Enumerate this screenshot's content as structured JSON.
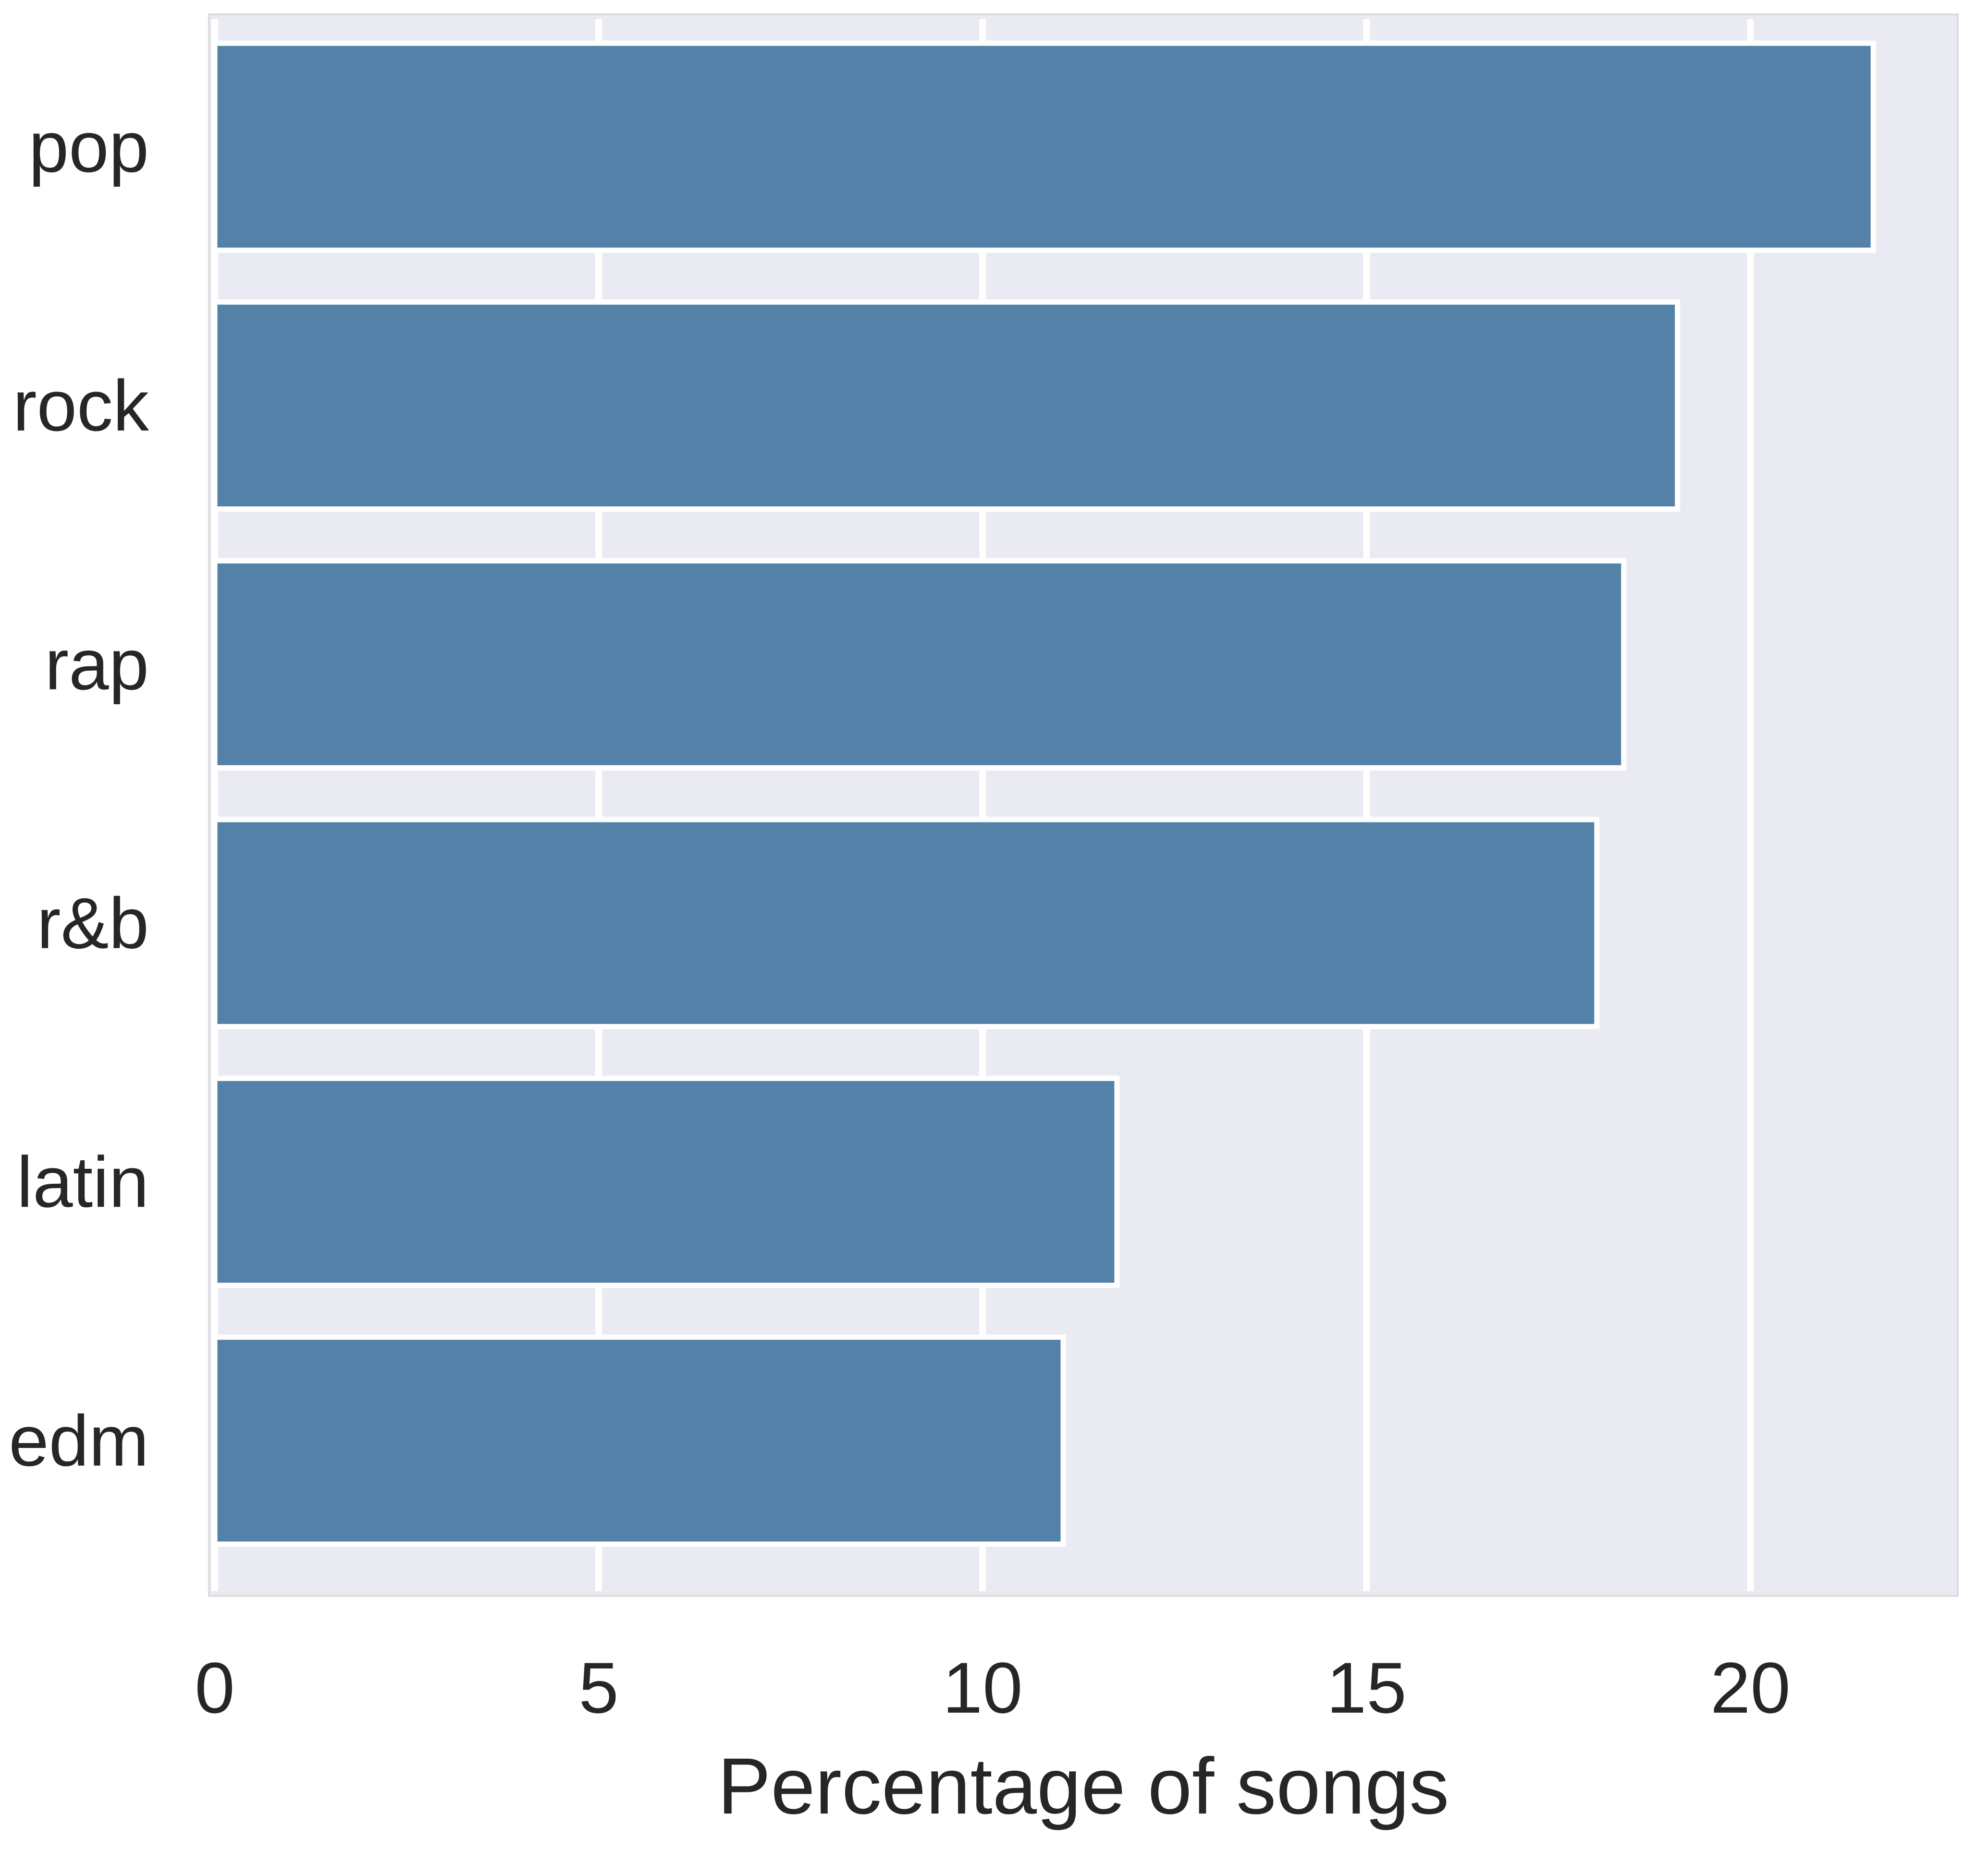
{
  "chart_data": {
    "type": "bar",
    "orientation": "horizontal",
    "categories": [
      "pop",
      "rock",
      "rap",
      "r&b",
      "latin",
      "edm"
    ],
    "values": [
      21.6,
      19.05,
      18.35,
      18.0,
      11.75,
      11.05
    ],
    "xlabel": "Percentage of songs",
    "ylabel": "",
    "title": "",
    "xlim": [
      0,
      22.7
    ],
    "xticks": [
      0,
      5,
      10,
      15,
      20
    ],
    "xtick_labels": [
      "0",
      "5",
      "10",
      "15",
      "20"
    ],
    "grid": true,
    "legend": "none",
    "colors": {
      "bar": "#5381a7",
      "bar_edge": "#ffffff",
      "plot_background": "#eaeaf2",
      "grid": "#ffffff",
      "text": "#262626",
      "frame": "#dcdcdc"
    }
  }
}
